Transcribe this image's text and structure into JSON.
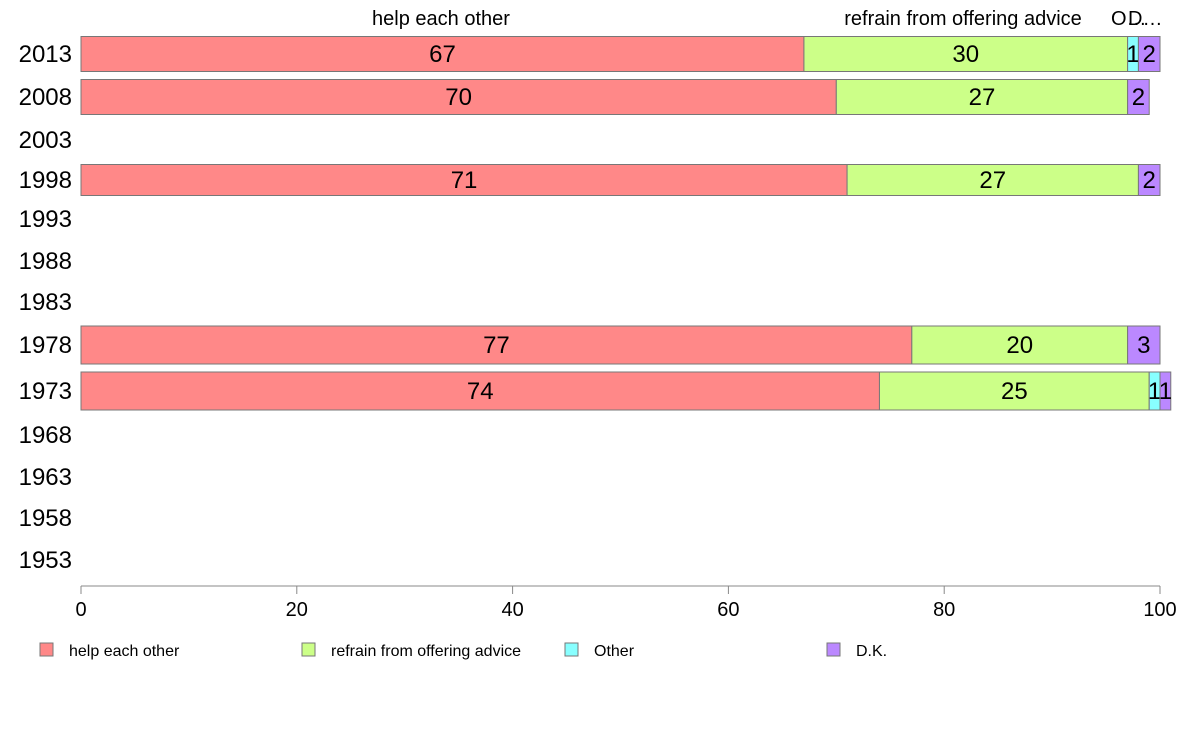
{
  "chart_data": {
    "type": "bar",
    "orientation": "horizontal",
    "stacked": true,
    "column_headers": [
      "help each other",
      "refrain from offering advice",
      "O…",
      "D…"
    ],
    "categories": [
      "2013",
      "2008",
      "2003",
      "1998",
      "1993",
      "1988",
      "1983",
      "1978",
      "1973",
      "1968",
      "1963",
      "1958",
      "1953"
    ],
    "series": [
      {
        "name": "help each other",
        "color": "#ff8888",
        "values": [
          67,
          70,
          null,
          71,
          null,
          null,
          null,
          77,
          74,
          null,
          null,
          null,
          null
        ]
      },
      {
        "name": "refrain from offering advice",
        "color": "#ccff88",
        "values": [
          30,
          27,
          null,
          27,
          null,
          null,
          null,
          20,
          25,
          null,
          null,
          null,
          null
        ]
      },
      {
        "name": "Other",
        "color": "#88ffff",
        "values": [
          1,
          0,
          null,
          0,
          null,
          null,
          null,
          0,
          1,
          null,
          null,
          null,
          null
        ]
      },
      {
        "name": "D.K.",
        "color": "#bb88ff",
        "values": [
          2,
          2,
          null,
          2,
          null,
          null,
          null,
          3,
          1,
          null,
          null,
          null,
          null
        ]
      }
    ],
    "xlim": [
      0,
      100
    ],
    "xticks": [
      0,
      20,
      40,
      60,
      80,
      100
    ],
    "grid": false,
    "legend_position": "bottom"
  }
}
